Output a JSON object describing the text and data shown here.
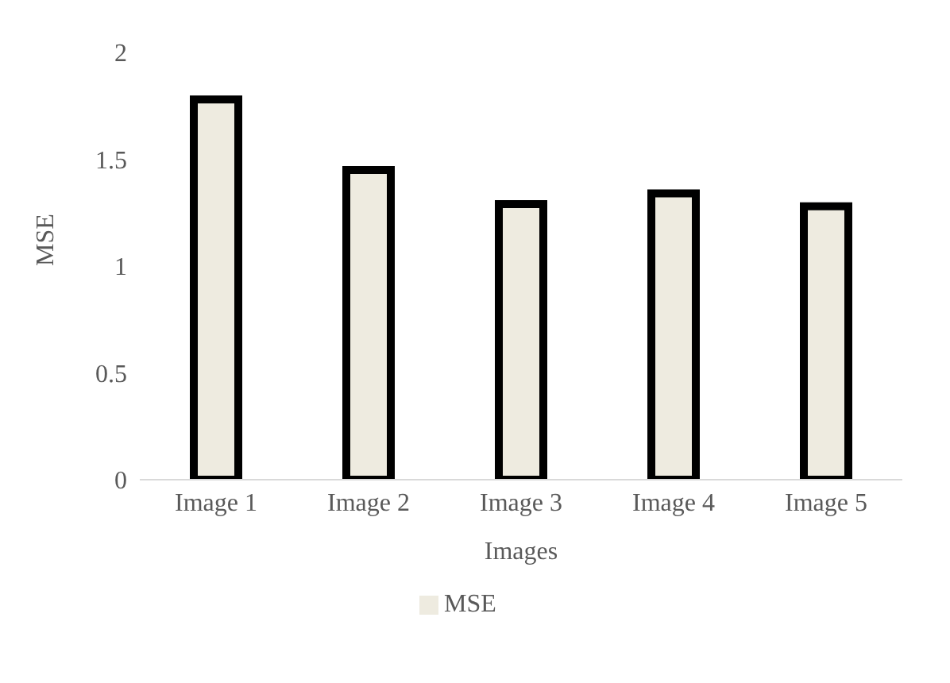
{
  "chart_data": {
    "type": "bar",
    "xlabel": "Images",
    "ylabel": "MSE",
    "categories": [
      "Image 1",
      "Image 2",
      "Image 3",
      "Image 4",
      "Image 5"
    ],
    "series": [
      {
        "name": "MSE",
        "color": "#eeebe0",
        "values": [
          1.78,
          1.45,
          1.29,
          1.34,
          1.28
        ]
      }
    ],
    "ylim": [
      0,
      2
    ],
    "yticks": [
      0,
      {
        "value": 0.5,
        "label": "0.5"
      },
      1,
      {
        "value": 1.5,
        "label": "1.5"
      },
      2
    ],
    "grid": false,
    "legend": "bottom"
  }
}
